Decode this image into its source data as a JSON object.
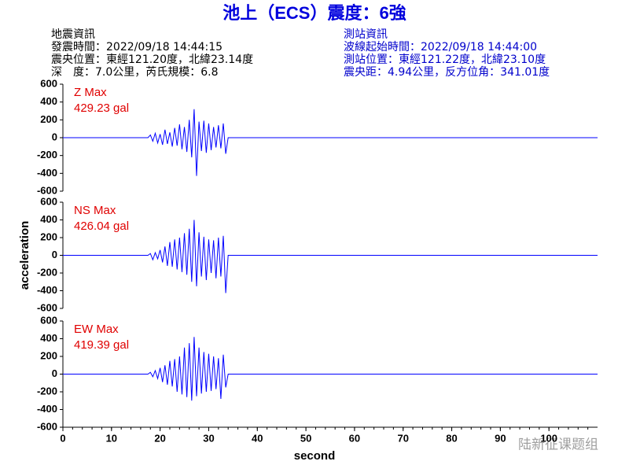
{
  "header": {
    "title": "池上（ECS）震度：6強",
    "left": [
      "地震資訊",
      "發震時間：2022/09/18 14:44:15",
      "震央位置：東經121.20度，北緯23.14度",
      "深　度：7.0公里，芮氏規模：6.8"
    ],
    "right": [
      "測站資訊",
      "波線起始時間：2022/09/18 14:44:00",
      "測站位置：東經121.22度，北緯23.10度",
      "震央距：4.94公里，反方位角：341.01度"
    ],
    "watermark": "陆新征课题组"
  },
  "chart_data": [
    {
      "type": "line",
      "xlim": [
        0,
        110
      ],
      "ylim": [
        -600,
        600
      ],
      "yticks": [
        -600,
        -400,
        -200,
        0,
        200,
        400,
        600
      ],
      "annotation": "429.23 gal",
      "x": [
        0,
        17.5,
        18,
        18.5,
        19,
        19.5,
        20,
        20.5,
        21,
        21.5,
        22,
        22.5,
        23,
        23.5,
        24,
        24.5,
        25,
        25.5,
        26,
        26.5,
        27,
        27.5,
        28,
        28.5,
        29,
        29.5,
        30,
        30.5,
        31,
        31.5,
        32,
        32.5,
        33,
        33.5,
        34,
        110
      ],
      "series": [
        {
          "name": "Z Max",
          "color": "#0000ff",
          "label_color": "#e00000",
          "values": [
            0,
            0,
            30,
            -40,
            50,
            -60,
            40,
            -80,
            90,
            -70,
            60,
            -100,
            110,
            -90,
            150,
            -130,
            120,
            -160,
            200,
            -220,
            320,
            -429.23,
            180,
            -150,
            190,
            -170,
            160,
            -140,
            120,
            -110,
            140,
            -120,
            160,
            -180,
            0,
            0
          ]
        }
      ]
    },
    {
      "type": "line",
      "xlim": [
        0,
        110
      ],
      "ylim": [
        -600,
        600
      ],
      "yticks": [
        -600,
        -400,
        -200,
        0,
        200,
        400,
        600
      ],
      "annotation": "426.04 gal",
      "ylabel": "acceleration",
      "x": [
        0,
        17.5,
        18,
        18.5,
        19,
        19.5,
        20,
        20.5,
        21,
        21.5,
        22,
        22.5,
        23,
        23.5,
        24,
        24.5,
        25,
        25.5,
        26,
        26.5,
        27,
        27.5,
        28,
        28.5,
        29,
        29.5,
        30,
        30.5,
        31,
        31.5,
        32,
        32.5,
        33,
        33.5,
        34,
        110
      ],
      "series": [
        {
          "name": "NS Max",
          "color": "#0000ff",
          "label_color": "#e00000",
          "values": [
            0,
            0,
            20,
            -50,
            30,
            -40,
            60,
            -80,
            100,
            -120,
            150,
            -130,
            180,
            -160,
            200,
            -190,
            250,
            -220,
            300,
            -300,
            400,
            -350,
            260,
            -240,
            210,
            -280,
            180,
            -200,
            170,
            -260,
            200,
            -240,
            220,
            -426.04,
            0,
            0
          ]
        }
      ]
    },
    {
      "type": "line",
      "xlim": [
        0,
        110
      ],
      "ylim": [
        -600,
        600
      ],
      "yticks": [
        -600,
        -400,
        -200,
        0,
        200,
        400,
        600
      ],
      "annotation": "419.39 gal",
      "xlabel": "second",
      "xticks": [
        0,
        10,
        20,
        30,
        40,
        50,
        60,
        70,
        80,
        90,
        100
      ],
      "x": [
        0,
        17.5,
        18,
        18.5,
        19,
        19.5,
        20,
        20.5,
        21,
        21.5,
        22,
        22.5,
        23,
        23.5,
        24,
        24.5,
        25,
        25.5,
        26,
        26.5,
        27,
        27.5,
        28,
        28.5,
        29,
        29.5,
        30,
        30.5,
        31,
        31.5,
        32,
        32.5,
        33,
        33.5,
        34,
        110
      ],
      "series": [
        {
          "name": "EW Max",
          "color": "#0000ff",
          "label_color": "#e00000",
          "values": [
            0,
            0,
            20,
            -30,
            40,
            -50,
            70,
            -90,
            100,
            -120,
            150,
            -140,
            170,
            -200,
            200,
            -230,
            300,
            -260,
            350,
            -300,
            419.39,
            -250,
            300,
            -220,
            250,
            -200,
            230,
            -190,
            200,
            -170,
            180,
            -280,
            220,
            -150,
            0,
            0
          ]
        }
      ]
    }
  ]
}
